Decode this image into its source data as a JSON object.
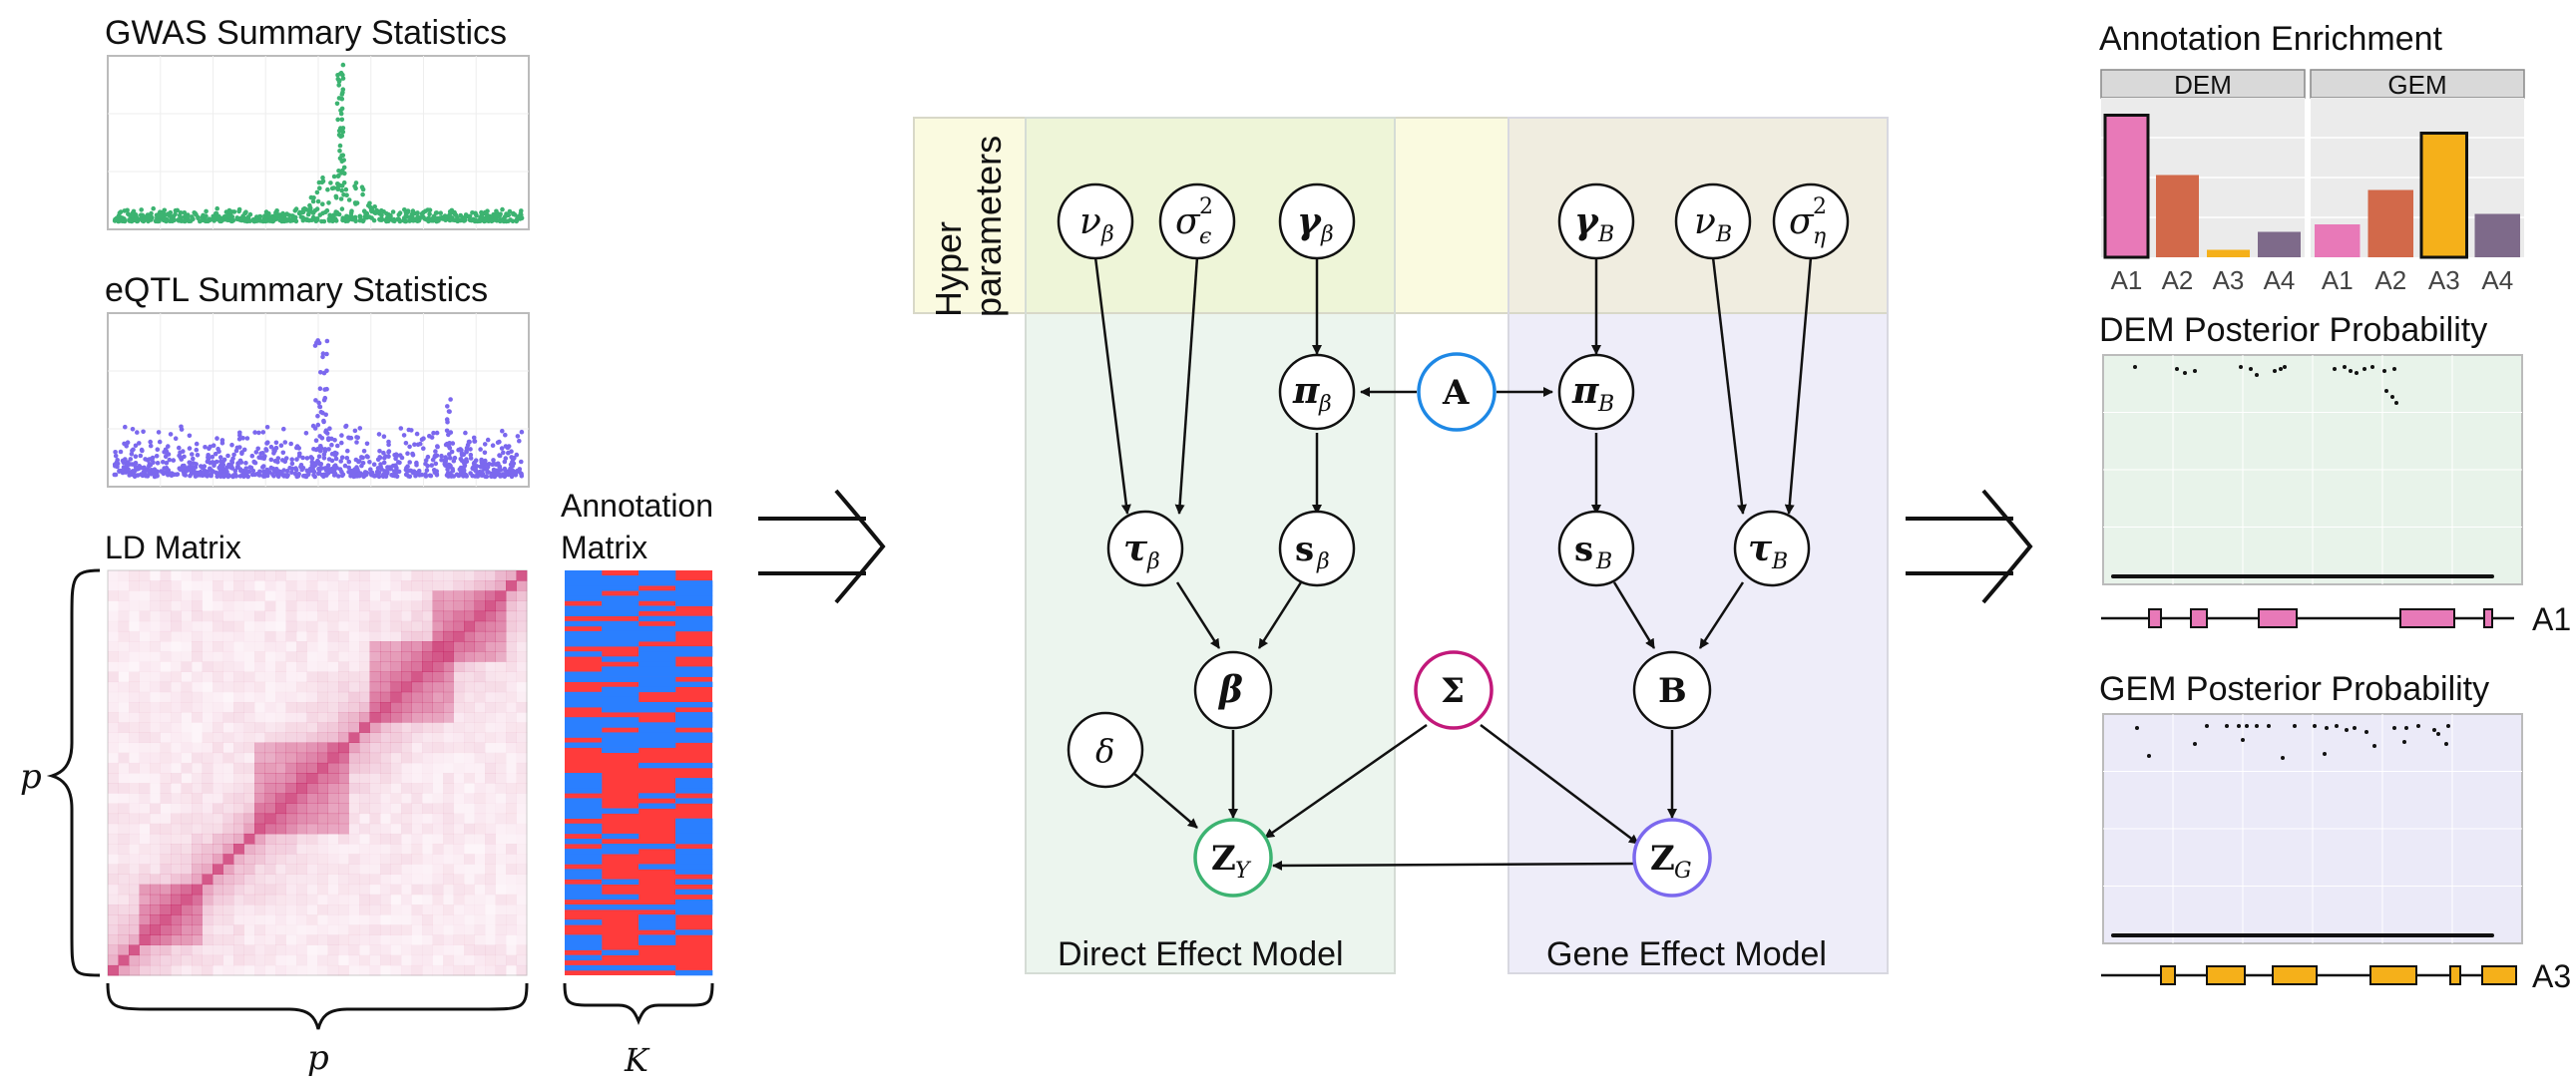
{
  "left": {
    "gwas_title": "GWAS Summary Statistics",
    "eqtl_title": "eQTL Summary Statistics",
    "ld_title": "LD Matrix",
    "annot_title_1": "Annotation",
    "annot_title_2": "Matrix",
    "p_label_left": "p",
    "p_label_bottom": "p",
    "k_label": "K",
    "colors": {
      "gwas": "#3cb371",
      "eqtl": "#7b68ee",
      "ld": "#c2185b",
      "annot_red": "#ff3b3b",
      "annot_blue": "#2a7fff"
    }
  },
  "center": {
    "hyper_label_1": "Hyper",
    "hyper_label_2": "parameters",
    "direct_model_label": "Direct Effect Model",
    "gene_model_label": "Gene Effect Model",
    "nodes": {
      "nu_beta": "ν",
      "nu_beta_sub": "β",
      "sigma_eps": "σ",
      "sigma_eps_sup": "2",
      "sigma_eps_sub": "ϵ",
      "gamma_beta": "γ",
      "gamma_beta_sub": "β",
      "gamma_B": "γ",
      "gamma_B_sub": "B",
      "nu_B": "ν",
      "nu_B_sub": "B",
      "sigma_eta": "σ",
      "sigma_eta_sup": "2",
      "sigma_eta_sub": "η",
      "pi_beta": "π",
      "pi_beta_sub": "β",
      "A": "A",
      "pi_B": "π",
      "pi_B_sub": "B",
      "tau_beta": "τ",
      "tau_beta_sub": "β",
      "s_beta": "s",
      "s_beta_sub": "β",
      "s_B": "s",
      "s_B_sub": "B",
      "tau_B": "τ",
      "tau_B_sub": "B",
      "beta": "β",
      "Sigma": "Σ",
      "B": "B",
      "delta": "δ",
      "Z_Y": "Z",
      "Z_Y_sub": "Y",
      "Z_G": "Z",
      "Z_G_sub": "G"
    },
    "colors": {
      "A": "#1e88e5",
      "Sigma": "#c2187a",
      "Z_Y": "#3cb371",
      "Z_G": "#7b68ee"
    }
  },
  "right": {
    "enrichment_title": "Annotation Enrichment",
    "facets": [
      "DEM",
      "GEM"
    ],
    "bar_categories": [
      "A1",
      "A2",
      "A3",
      "A4"
    ],
    "dem_values": [
      0.95,
      0.55,
      0.05,
      0.17
    ],
    "gem_values": [
      0.22,
      0.45,
      0.83,
      0.29
    ],
    "bar_colors": [
      "#e879b8",
      "#d2694a",
      "#f5b01a",
      "#7e6a8a"
    ],
    "dem_post_title": "DEM Posterior Probability",
    "gem_post_title": "GEM Posterior Probability",
    "track_a1_label": "A1",
    "track_a3_label": "A3"
  }
}
